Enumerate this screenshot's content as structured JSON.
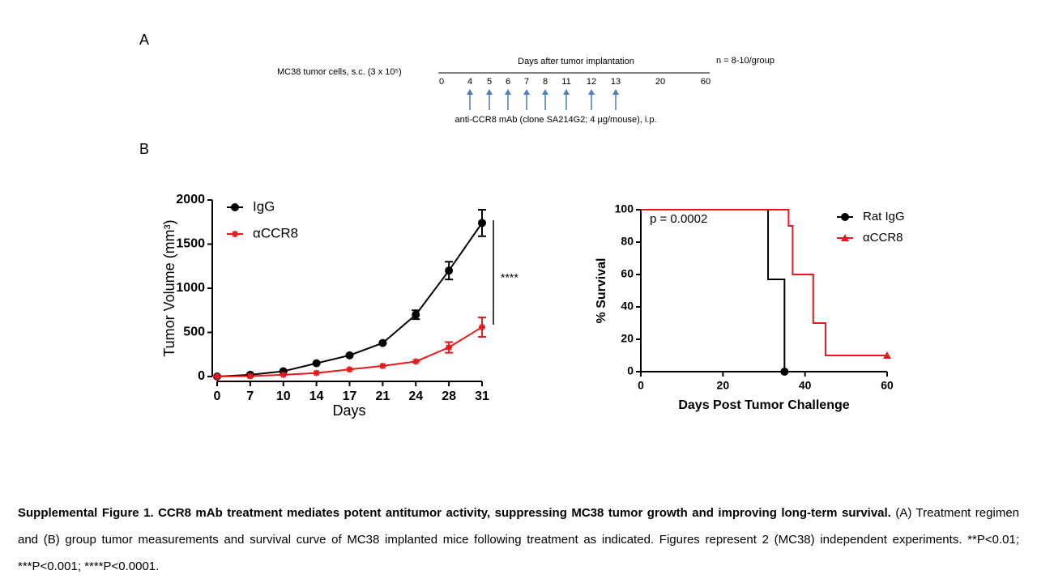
{
  "panel_a": {
    "label": "A",
    "cells": "MC38 tumor cells, s.c. (3 x 10⁵)",
    "axis_title": "Days after tumor implantation",
    "n": "n = 8-10/group",
    "days": [
      "0",
      "4",
      "5",
      "6",
      "7",
      "8",
      "11",
      "12",
      "13",
      "20",
      "60"
    ],
    "treatment": "anti-CCR8 mAb (clone SA214G2; 4 µg/mouse), i.p."
  },
  "panel_b": {
    "label": "B"
  },
  "chart_data": [
    {
      "type": "line",
      "ylabel": "Tumor Volume (mm³)",
      "xlabel": "Days",
      "categories": [
        "0",
        "7",
        "10",
        "14",
        "17",
        "21",
        "24",
        "28",
        "31"
      ],
      "ylim": [
        0,
        2000
      ],
      "yticks": [
        0,
        500,
        1000,
        1500,
        2000
      ],
      "annotation": "****",
      "series": [
        {
          "name": "IgG",
          "color": "#000000",
          "marker": "circle",
          "values": [
            0,
            20,
            60,
            150,
            240,
            380,
            700,
            1200,
            1740
          ],
          "errors": [
            0,
            0,
            0,
            0,
            0,
            0,
            50,
            100,
            150
          ]
        },
        {
          "name": "αCCR8",
          "color": "#e8191a",
          "marker": "star",
          "values": [
            0,
            5,
            20,
            40,
            80,
            120,
            170,
            330,
            560
          ],
          "errors": [
            0,
            0,
            0,
            0,
            0,
            0,
            0,
            60,
            110
          ]
        }
      ]
    },
    {
      "type": "line",
      "ylabel": "% Survival",
      "xlabel": "Days Post Tumor Challenge",
      "xlim": [
        0,
        60
      ],
      "xticks": [
        0,
        20,
        40,
        60
      ],
      "ylim": [
        0,
        100
      ],
      "yticks": [
        0,
        20,
        40,
        60,
        80,
        100
      ],
      "annotation": "p = 0.0002",
      "series": [
        {
          "name": "Rat IgG",
          "color": "#000000",
          "marker": "circle",
          "x": [
            0,
            31,
            31,
            35,
            35
          ],
          "values": [
            100,
            100,
            57,
            57,
            0
          ]
        },
        {
          "name": "αCCR8",
          "color": "#e8191a",
          "marker": "triangle",
          "x": [
            0,
            36,
            36,
            37,
            37,
            42,
            42,
            45,
            45,
            60
          ],
          "values": [
            100,
            100,
            90,
            90,
            60,
            60,
            30,
            30,
            10,
            10
          ]
        }
      ]
    }
  ],
  "caption": {
    "bold": "Supplemental Figure 1. CCR8 mAb treatment mediates potent antitumor activity, suppressing MC38 tumor growth and improving long-term survival.",
    "text": "(A) Treatment regimen and (B) group tumor measurements and survival curve of MC38 implanted mice following treatment as indicated. Figures represent 2 (MC38) independent experiments. **P<0.01; ***P<0.001; ****P<0.0001."
  }
}
